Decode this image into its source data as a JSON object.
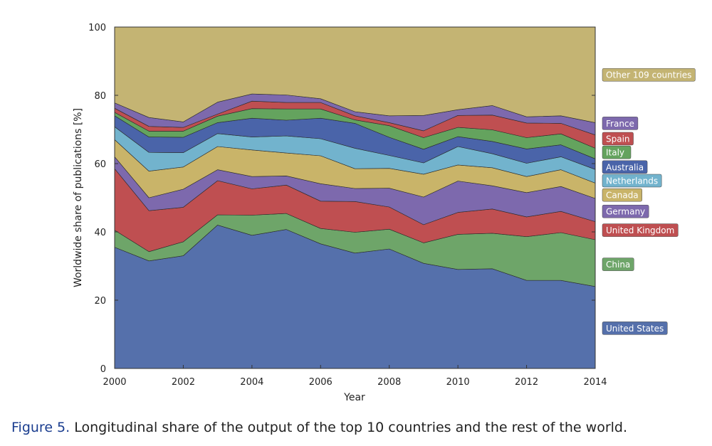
{
  "chart_data": {
    "type": "area",
    "stacked": true,
    "xlabel": "Year",
    "ylabel": "Worldwide share of publications [%]",
    "xlim": [
      2000,
      2014
    ],
    "ylim": [
      0,
      100
    ],
    "x_ticks": [
      "2000",
      "2002",
      "2004",
      "2006",
      "2008",
      "2010",
      "2012",
      "2014"
    ],
    "y_ticks": [
      "0",
      "20",
      "40",
      "60",
      "80",
      "100"
    ],
    "x": [
      2000,
      2001,
      2002,
      2003,
      2004,
      2005,
      2006,
      2007,
      2008,
      2009,
      2010,
      2011,
      2012,
      2013,
      2014
    ],
    "series": [
      {
        "name": "United States",
        "color": "#5570ab",
        "values": [
          35.5,
          31.5,
          33.0,
          42.0,
          39.0,
          40.7,
          36.5,
          33.8,
          35.0,
          30.8,
          29.0,
          29.2,
          25.8,
          25.8,
          24.0
        ]
      },
      {
        "name": "China",
        "color": "#6ea569",
        "values": [
          5.0,
          2.7,
          4.1,
          3.0,
          5.9,
          4.7,
          4.5,
          6.1,
          5.8,
          6.0,
          10.3,
          10.4,
          12.8,
          14.0,
          13.7
        ]
      },
      {
        "name": "United Kingdom",
        "color": "#bf4f51",
        "values": [
          18.0,
          12.0,
          10.1,
          10.0,
          7.7,
          8.3,
          8.0,
          9.0,
          6.5,
          5.3,
          6.4,
          7.1,
          5.8,
          6.2,
          5.3
        ]
      },
      {
        "name": "Germany",
        "color": "#7d69ad",
        "values": [
          3.5,
          3.8,
          5.3,
          3.2,
          3.6,
          2.7,
          5.1,
          3.8,
          5.5,
          8.1,
          9.2,
          6.8,
          7.1,
          7.3,
          6.8
        ]
      },
      {
        "name": "Canada",
        "color": "#c9b469",
        "values": [
          5.0,
          7.8,
          6.5,
          6.8,
          7.8,
          6.7,
          8.2,
          5.8,
          5.8,
          6.7,
          4.7,
          5.3,
          4.7,
          4.9,
          4.5
        ]
      },
      {
        "name": "Netherlands",
        "color": "#72b3cd",
        "values": [
          3.8,
          5.5,
          4.2,
          3.8,
          3.8,
          5.0,
          5.0,
          6.0,
          3.8,
          3.3,
          5.4,
          4.1,
          3.9,
          3.8,
          4.0
        ]
      },
      {
        "name": "Australia",
        "color": "#4a64a9",
        "values": [
          3.2,
          4.5,
          4.5,
          3.2,
          5.5,
          4.6,
          6.0,
          7.3,
          5.3,
          4.0,
          2.9,
          3.6,
          4.2,
          3.5,
          3.1
        ]
      },
      {
        "name": "Italy",
        "color": "#64a35e",
        "values": [
          1.0,
          1.7,
          1.8,
          1.9,
          2.8,
          3.3,
          2.7,
          1.0,
          3.4,
          3.4,
          2.7,
          3.4,
          3.3,
          3.2,
          3.1
        ]
      },
      {
        "name": "Spain",
        "color": "#bf4f51",
        "values": [
          1.2,
          1.4,
          1.1,
          0.6,
          2.2,
          1.9,
          1.9,
          1.2,
          0.9,
          2.0,
          3.5,
          4.3,
          4.3,
          3.1,
          3.9
        ]
      },
      {
        "name": "France",
        "color": "#7d69ad",
        "values": [
          1.6,
          2.6,
          1.6,
          3.5,
          2.1,
          2.2,
          1.1,
          1.2,
          2.0,
          4.5,
          1.7,
          2.8,
          1.8,
          2.2,
          3.6
        ]
      },
      {
        "name": "Other 109 countries",
        "color": "#c4b473",
        "values": [
          21.2,
          26.5,
          27.8,
          22.0,
          19.6,
          19.9,
          21.0,
          24.0,
          26.0,
          25.9,
          24.2,
          23.0,
          26.1,
          26.0,
          28.0
        ]
      }
    ],
    "legend_order": [
      "Other 109 countries",
      "France",
      "Spain",
      "Italy",
      "Australia",
      "Netherlands",
      "Canada",
      "Germany",
      "United Kingdom",
      "China",
      "United States"
    ]
  },
  "caption": {
    "label": "Figure 5.",
    "text": "Longitudinal share of the output of the top 10 countries and the rest of the world."
  }
}
